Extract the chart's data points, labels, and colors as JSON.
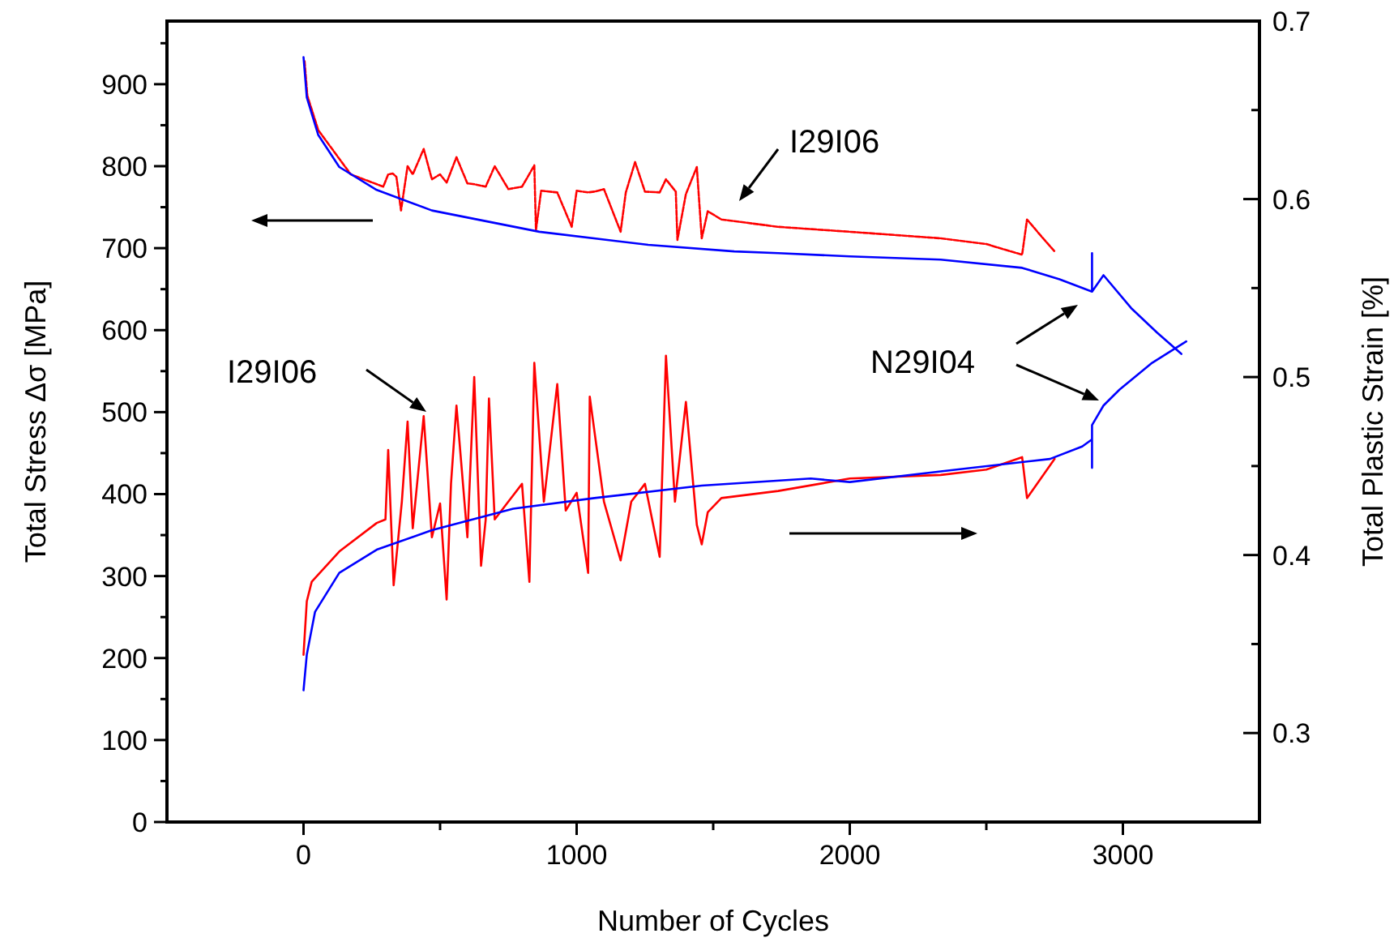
{
  "chart_data": {
    "type": "line",
    "xlabel": "Number of Cycles",
    "ylabel": "Total Stress Δσ [MPa]",
    "y2label": "Total Plastic Strain [%]",
    "xlim": [
      -500,
      3500
    ],
    "xticks": [
      0,
      {
        "value": 500,
        "label": null
      },
      1000,
      {
        "value": 1500,
        "label": null
      },
      2000,
      {
        "value": 2500,
        "label": null
      },
      3000
    ],
    "ylim": [
      0,
      977
    ],
    "yticks": [
      0,
      {
        "value": 50,
        "label": null
      },
      100,
      {
        "value": 150,
        "label": null
      },
      200,
      {
        "value": 250,
        "label": null
      },
      300,
      {
        "value": 350,
        "label": null
      },
      400,
      {
        "value": 450,
        "label": null
      },
      500,
      {
        "value": 550,
        "label": null
      },
      600,
      {
        "value": 650,
        "label": null
      },
      700,
      {
        "value": 750,
        "label": null
      },
      800,
      {
        "value": 850,
        "label": null
      },
      900,
      {
        "value": 950,
        "label": null
      }
    ],
    "y2lim": [
      0.25,
      0.7
    ],
    "y2ticks": [
      0.3,
      {
        "value": 0.35,
        "label": null
      },
      0.4,
      {
        "value": 0.45,
        "label": null
      },
      0.5,
      {
        "value": 0.55,
        "label": null
      },
      0.6,
      {
        "value": 0.65,
        "label": null
      },
      0.7
    ],
    "grid": false,
    "marker": "none",
    "series": [
      {
        "color": "#ff0000",
        "line_style": "dashed",
        "x": [
          4,
          14,
          54,
          173,
          292,
          310,
          327,
          340,
          357,
          381,
          400,
          440,
          470,
          500,
          524,
          560,
          600,
          625,
          667,
          700,
          750,
          800,
          845,
          851,
          870,
          929,
          982,
          1000,
          1042,
          1065,
          1100,
          1161,
          1180,
          1214,
          1250,
          1304,
          1327,
          1363,
          1369,
          1400,
          1440,
          1458,
          1480,
          1530,
          1738,
          2000,
          2333,
          2500,
          2631,
          2649,
          2700,
          2750
        ],
        "values": [
          928,
          886,
          844,
          790,
          775,
          790,
          791,
          787,
          746,
          800,
          790,
          821,
          784,
          790,
          780,
          811,
          779,
          778,
          775,
          800,
          772,
          775,
          801,
          722,
          770,
          768,
          726,
          770,
          768,
          769,
          772,
          720,
          768,
          805,
          769,
          768,
          784,
          769,
          710,
          766,
          799,
          712,
          745,
          735,
          726,
          720,
          712,
          705,
          692,
          735,
          715,
          696
        ]
      },
      {
        "color": "#0000ff",
        "line_style": "solid",
        "x": [
          0,
          12,
          54,
          131,
          268,
          470,
          863,
          1262,
          1577,
          1738,
          2000,
          2333,
          2631,
          2768,
          2887,
          2887,
          2887,
          2929,
          3030,
          3125,
          3214
        ],
        "values": [
          933,
          884,
          838,
          799,
          771,
          746,
          720,
          704,
          696,
          694,
          690,
          686,
          676,
          662,
          647,
          694,
          647,
          667,
          627,
          597,
          571
        ]
      },
      {
        "color": "#ff0000",
        "axis": "y2",
        "line_style": "solid",
        "x": [
          0,
          12,
          30,
          131,
          268,
          300,
          310,
          330,
          360,
          381,
          400,
          440,
          470,
          500,
          524,
          540,
          560,
          600,
          625,
          650,
          667,
          679,
          700,
          750,
          800,
          827,
          845,
          880,
          929,
          960,
          1000,
          1042,
          1048,
          1100,
          1161,
          1200,
          1250,
          1304,
          1327,
          1360,
          1400,
          1440,
          1458,
          1480,
          1530,
          1738,
          2000,
          2333,
          2500,
          2631,
          2649,
          2750
        ],
        "values": [
          0.344,
          0.374,
          0.385,
          0.402,
          0.418,
          0.42,
          0.459,
          0.383,
          0.43,
          0.475,
          0.415,
          0.478,
          0.41,
          0.429,
          0.375,
          0.44,
          0.484,
          0.41,
          0.5,
          0.394,
          0.42,
          0.488,
          0.42,
          0.43,
          0.44,
          0.385,
          0.508,
          0.43,
          0.496,
          0.425,
          0.435,
          0.39,
          0.489,
          0.43,
          0.397,
          0.43,
          0.44,
          0.399,
          0.512,
          0.43,
          0.486,
          0.417,
          0.406,
          0.424,
          0.432,
          0.436,
          0.443,
          0.445,
          0.448,
          0.455,
          0.432,
          0.454
        ]
      },
      {
        "color": "#0000ff",
        "axis": "y2",
        "line_style": "solid",
        "x": [
          0,
          12,
          42,
          131,
          268,
          470,
          768,
          1065,
          1458,
          1857,
          2000,
          2333,
          2733,
          2851,
          2887,
          2887,
          2887,
          2929,
          2988,
          3107,
          3232
        ],
        "values": [
          0.324,
          0.344,
          0.368,
          0.39,
          0.403,
          0.414,
          0.426,
          0.432,
          0.439,
          0.443,
          0.441,
          0.447,
          0.454,
          0.461,
          0.465,
          0.449,
          0.473,
          0.484,
          0.493,
          0.508,
          0.52
        ]
      }
    ],
    "annotations": [
      "I29I06",
      "I29I06",
      "N29I04"
    ]
  }
}
